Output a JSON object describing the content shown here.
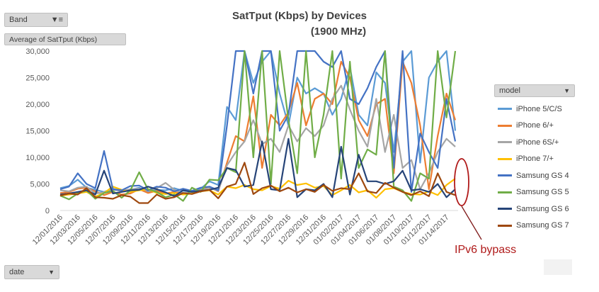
{
  "title_line1": "SatTput (Kbps) by Devices",
  "title_line2": "(1900 MHz)",
  "band_button": "Band",
  "average_button": "Average of SatTput (Kbps)",
  "date_button": "date",
  "model_button": "model",
  "annotation": "IPv6 bypass",
  "colors": {
    "annotation": "#b01a1a"
  },
  "chart_data": {
    "type": "line",
    "title": "SatTput (Kbps) by Devices (1900 MHz)",
    "xlabel": "date",
    "ylabel": "Average of SatTput (Kbps)",
    "ylim": [
      0,
      30000
    ],
    "yticks": [
      0,
      5000,
      10000,
      15000,
      20000,
      25000,
      30000
    ],
    "ytick_labels": [
      "0",
      "5,000",
      "10,000",
      "15,000",
      "20,000",
      "25,000",
      "30,000"
    ],
    "grid": false,
    "legend_position": "right",
    "x_tick_labels": [
      "12/01/2016",
      "12/03/2016",
      "12/05/2016",
      "12/07/2016",
      "12/09/2016",
      "12/11/2016",
      "12/13/2016",
      "12/15/2016",
      "12/17/2016",
      "12/19/2016",
      "12/21/2016",
      "12/23/2016",
      "12/25/2016",
      "12/27/2016",
      "12/29/2016",
      "12/31/2016",
      "01/02/2017",
      "01/04/2017",
      "01/06/2017",
      "01/08/2017",
      "01/10/2017",
      "01/12/2017",
      "01/14/2017"
    ],
    "x": [
      "12/01/2016",
      "12/02/2016",
      "12/03/2016",
      "12/04/2016",
      "12/05/2016",
      "12/06/2016",
      "12/07/2016",
      "12/08/2016",
      "12/09/2016",
      "12/10/2016",
      "12/11/2016",
      "12/12/2016",
      "12/13/2016",
      "12/14/2016",
      "12/15/2016",
      "12/16/2016",
      "12/17/2016",
      "12/18/2016",
      "12/19/2016",
      "12/20/2016",
      "12/21/2016",
      "12/22/2016",
      "12/23/2016",
      "12/24/2016",
      "12/25/2016",
      "12/26/2016",
      "12/27/2016",
      "12/28/2016",
      "12/29/2016",
      "12/30/2016",
      "12/31/2016",
      "01/01/2017",
      "01/02/2017",
      "01/03/2017",
      "01/04/2017",
      "01/05/2017",
      "01/06/2017",
      "01/07/2017",
      "01/08/2017",
      "01/09/2017",
      "01/10/2017",
      "01/11/2017",
      "01/12/2017",
      "01/13/2017",
      "01/14/2017",
      "01/15/2017"
    ],
    "series": [
      {
        "name": "iPhone 5/C/S",
        "color": "#5b9bd5",
        "values": [
          4200,
          4600,
          5800,
          4300,
          3900,
          3500,
          4100,
          3600,
          3900,
          4300,
          3400,
          3900,
          3800,
          4200,
          3700,
          3600,
          4100,
          5500,
          4800,
          19500,
          17000,
          30000,
          24000,
          28000,
          30000,
          22000,
          16000,
          25000,
          22000,
          23000,
          22000,
          18000,
          21000,
          27000,
          18000,
          16000,
          26000,
          24000,
          11000,
          28000,
          30000,
          9000,
          25000,
          28000,
          30000,
          15000
        ]
      },
      {
        "name": "iPhone 6/+",
        "color": "#ed7d31",
        "values": [
          3300,
          3500,
          4100,
          4300,
          3600,
          2900,
          3500,
          3000,
          3200,
          4000,
          3300,
          3700,
          3200,
          3500,
          3100,
          3400,
          3800,
          4400,
          3600,
          9000,
          14000,
          13000,
          21500,
          8000,
          18000,
          16000,
          18500,
          24000,
          16000,
          21000,
          22000,
          20000,
          28000,
          25000,
          17000,
          14000,
          20000,
          21000,
          7000,
          28000,
          24000,
          16000,
          4000,
          14000,
          22000,
          17000
        ]
      },
      {
        "name": "iPhone 6S/+",
        "color": "#a5a5a5",
        "values": [
          3800,
          3600,
          4300,
          4500,
          3200,
          3400,
          3900,
          3700,
          4000,
          4100,
          3700,
          4200,
          5200,
          3900,
          3300,
          3400,
          3700,
          4300,
          3700,
          8500,
          11000,
          13000,
          17000,
          12500,
          13500,
          11000,
          16000,
          13000,
          15500,
          14000,
          16000,
          21000,
          23500,
          19000,
          15000,
          12000,
          21000,
          11000,
          18000,
          8000,
          9500,
          4000,
          7000,
          11000,
          13500,
          12000
        ]
      },
      {
        "name": "iPhone 7/+",
        "color": "#ffc000",
        "values": [
          2800,
          3000,
          3200,
          3500,
          2600,
          3300,
          4500,
          3900,
          3500,
          3800,
          4000,
          3300,
          3100,
          3300,
          3000,
          3200,
          3600,
          3800,
          3000,
          4500,
          4200,
          4800,
          4000,
          3800,
          4600,
          4100,
          5600,
          4800,
          5100,
          4300,
          4600,
          2900,
          3800,
          4800,
          3400,
          3800,
          2400,
          4000,
          4200,
          3500,
          3100,
          3000,
          3600,
          2900,
          4800,
          6000
        ]
      },
      {
        "name": "Samsung GS 4",
        "color": "#4472c4",
        "values": [
          4000,
          4500,
          7000,
          5000,
          4200,
          11200,
          4000,
          3800,
          4600,
          4700,
          3800,
          4500,
          4300,
          3600,
          4100,
          3700,
          4300,
          4500,
          3800,
          16000,
          30000,
          30000,
          22000,
          30000,
          30000,
          15000,
          18000,
          30000,
          30000,
          30000,
          28000,
          27000,
          30000,
          21000,
          20000,
          23000,
          27000,
          30000,
          8000,
          30000,
          3500,
          14500,
          11000,
          8000,
          21000,
          13000
        ]
      },
      {
        "name": "Samsung GS 5",
        "color": "#70ad47",
        "values": [
          2800,
          2100,
          3200,
          3800,
          2200,
          3300,
          3700,
          2400,
          3800,
          7200,
          4000,
          3500,
          2500,
          3000,
          1800,
          4300,
          3500,
          5800,
          5700,
          8000,
          7200,
          30000,
          10000,
          30000,
          5000,
          30000,
          17000,
          7000,
          30000,
          10000,
          18000,
          30000,
          6000,
          28000,
          8000,
          11500,
          10500,
          30000,
          4500,
          3800,
          1800,
          7000,
          6000,
          30000,
          17500,
          30000
        ]
      },
      {
        "name": "Samsung GS 6",
        "color": "#264478",
        "values": [
          3000,
          3200,
          3500,
          3800,
          3000,
          7500,
          3200,
          3500,
          3800,
          3900,
          4500,
          4000,
          3400,
          2700,
          3800,
          3500,
          3700,
          3900,
          4300,
          8000,
          7600,
          4500,
          4800,
          13000,
          4000,
          3800,
          13500,
          2500,
          4000,
          3800,
          5000,
          2500,
          12000,
          3000,
          10500,
          5500,
          5500,
          5000,
          5500,
          7500,
          3800,
          4000,
          3500,
          5000,
          2500,
          4000
        ]
      },
      {
        "name": "Samsung GS 7",
        "color": "#9e480e",
        "values": [
          2800,
          3200,
          3000,
          4200,
          2500,
          2400,
          2200,
          2900,
          2600,
          1400,
          1400,
          3000,
          2200,
          2500,
          3300,
          3100,
          3600,
          3900,
          2300,
          4500,
          5000,
          9000,
          3100,
          4200,
          4700,
          3600,
          4300,
          3400,
          4000,
          3500,
          4800,
          3700,
          4200,
          4000,
          7000,
          3600,
          3300,
          5200,
          4300,
          3500,
          2900,
          3600,
          2700,
          7000,
          3500,
          2900
        ]
      }
    ]
  }
}
